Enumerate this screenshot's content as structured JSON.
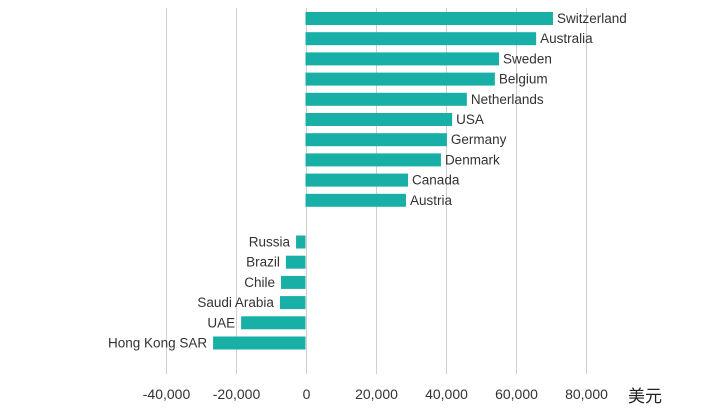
{
  "chart_data": {
    "type": "bar",
    "orientation": "horizontal",
    "title": "",
    "xlabel": "美元",
    "ylabel": "",
    "xlim": [
      -40000,
      80000
    ],
    "x_ticks": [
      -40000,
      -20000,
      0,
      20000,
      40000,
      60000,
      80000
    ],
    "x_tick_labels": [
      "-40,000",
      "-20,000",
      "0",
      "20,000",
      "40,000",
      "60,000",
      "80,000"
    ],
    "grid": "vertical",
    "bar_color": "#17afa6",
    "groups": [
      {
        "categories": [
          "Switzerland",
          "Australia",
          "Sweden",
          "Belgium",
          "Netherlands",
          "USA",
          "Germany",
          "Denmark",
          "Canada",
          "Austria"
        ],
        "values": [
          70700,
          65900,
          55300,
          54100,
          46100,
          41900,
          40400,
          38700,
          29300,
          28700
        ]
      },
      {
        "categories": [
          "Russia",
          "Brazil",
          "Chile",
          "Saudi Arabia",
          "UAE",
          "Hong Kong SAR"
        ],
        "values": [
          -2700,
          -5600,
          -7000,
          -7300,
          -18400,
          -26400
        ]
      }
    ]
  }
}
